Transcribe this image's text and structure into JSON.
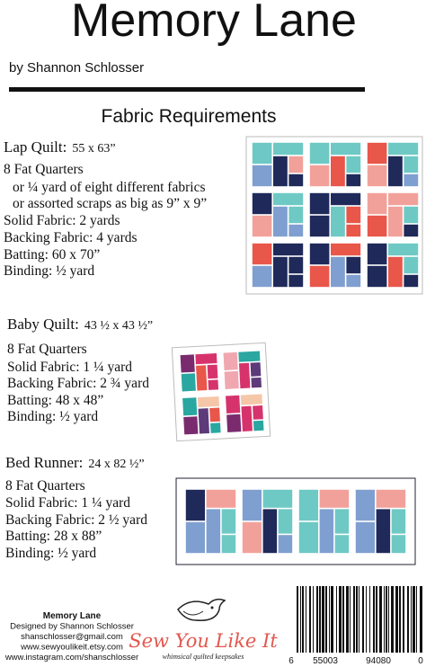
{
  "header": {
    "title": "Memory Lane",
    "byline": "by Shannon Schlosser"
  },
  "section_title": "Fabric Requirements",
  "sections": [
    {
      "name": "Lap Quilt:",
      "size": "55 x 63”",
      "lines": [
        "8 Fat Quarters",
        "or ¼ yard of eight different fabrics",
        "or assorted scraps as big as 9” x 9”",
        "Solid Fabric:  2 yards",
        "Backing Fabric:  4 yards",
        "Batting:  60 x 70”",
        "Binding:  ½ yard"
      ]
    },
    {
      "name": "Baby Quilt:",
      "size": "43 ½ x 43 ½”",
      "lines": [
        "8 Fat Quarters",
        "Solid Fabric:  1 ¼ yard",
        "Backing Fabric:  2 ¾ yard",
        "Batting:  48 x 48”",
        "Binding:  ½ yard"
      ]
    },
    {
      "name": "Bed Runner:",
      "size": "24 x 82 ½”",
      "lines": [
        "8 Fat Quarters",
        "Solid Fabric:  1 ¼ yard",
        "Backing Fabric:  2 ½ yard",
        "Batting:  28 x 88”",
        "Binding:  ½ yard"
      ]
    }
  ],
  "footer": {
    "lines": [
      "Memory Lane",
      "Designed by Shannon Schlosser",
      "shanschlosser@gmail.com",
      "www.sewyoulikeit.etsy.com",
      "www.instagram.com/shanschlosser"
    ]
  },
  "logo": {
    "name": "Sew You Like It",
    "tagline": "whimsical quilted keepsakes"
  },
  "barcode": {
    "digits": [
      "6",
      "55003",
      "94080",
      "0"
    ]
  }
}
